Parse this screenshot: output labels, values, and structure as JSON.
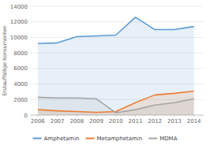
{
  "chart_data": {
    "type": "line",
    "ylabel": "Erstauffällige Konsumenten",
    "x": [
      2006,
      2007,
      2008,
      2009,
      2010,
      2011,
      2012,
      2013,
      2014
    ],
    "series": [
      {
        "name": "Amphetamin",
        "color": "#5b9bd5",
        "values": [
          9200,
          9300,
          10100,
          10200,
          10300,
          12600,
          11000,
          11000,
          11400
        ]
      },
      {
        "name": "Metamphetamin",
        "color": "#ed7d31",
        "values": [
          700,
          550,
          450,
          350,
          450,
          1600,
          2600,
          2800,
          3100
        ]
      },
      {
        "name": "MDMA",
        "color": "#a5a5a5",
        "values": [
          2300,
          2200,
          2200,
          2100,
          300,
          700,
          1300,
          1600,
          2100
        ]
      }
    ],
    "xlim": [
      2005.6,
      2014.5
    ],
    "xticks": [
      2006,
      2007,
      2008,
      2009,
      2010,
      2011,
      2012,
      2013,
      2014
    ],
    "ylim": [
      0,
      14000
    ],
    "yticks": [
      0,
      2000,
      4000,
      6000,
      8000,
      10000,
      12000,
      14000
    ],
    "grid": true,
    "legend": "bottom"
  }
}
